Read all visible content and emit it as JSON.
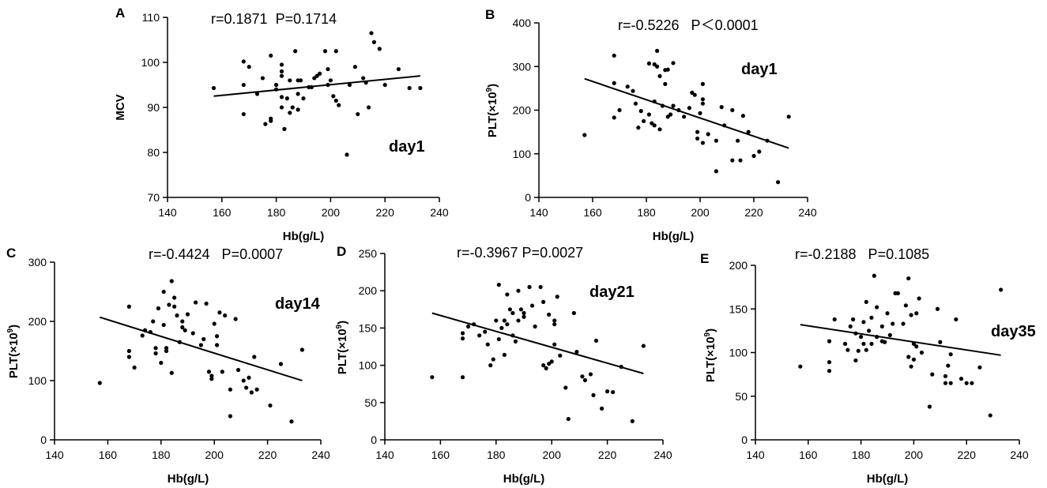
{
  "chart_data": [
    {
      "id": "A",
      "type": "scatter",
      "panel_label": "A",
      "xlabel": "Hb(g/L)",
      "ylabel": "MCV",
      "ylabel_sup": "",
      "ylabel_tail": "",
      "xlim": [
        140,
        240
      ],
      "ylim": [
        70,
        110
      ],
      "xticks": [
        140,
        160,
        180,
        200,
        220,
        240
      ],
      "yticks": [
        70,
        80,
        90,
        100,
        110
      ],
      "stats": "r=0.1871  P=0.1714",
      "annotation": "day1",
      "fit_line": [
        [
          157,
          92.5
        ],
        [
          233,
          97.0
        ]
      ],
      "points": [
        [
          157,
          94.3
        ],
        [
          168,
          100.2
        ],
        [
          168,
          95
        ],
        [
          168,
          88.5
        ],
        [
          170,
          99
        ],
        [
          173,
          93
        ],
        [
          175,
          96.5
        ],
        [
          176,
          86.3
        ],
        [
          178,
          101.5
        ],
        [
          178,
          87.5
        ],
        [
          178,
          87
        ],
        [
          180,
          94
        ],
        [
          180,
          95
        ],
        [
          182,
          99.5
        ],
        [
          182,
          90
        ],
        [
          182,
          92.3
        ],
        [
          182,
          97
        ],
        [
          182,
          98
        ],
        [
          183,
          85.2
        ],
        [
          184,
          92
        ],
        [
          185,
          96
        ],
        [
          185,
          88.8
        ],
        [
          186,
          90
        ],
        [
          187,
          102.5
        ],
        [
          188,
          89.5
        ],
        [
          188,
          96
        ],
        [
          188,
          93
        ],
        [
          189,
          96
        ],
        [
          190,
          92
        ],
        [
          192,
          94.5
        ],
        [
          193,
          94.5
        ],
        [
          194,
          96.5
        ],
        [
          195,
          97
        ],
        [
          196,
          97.5
        ],
        [
          198,
          102.5
        ],
        [
          199,
          98.5
        ],
        [
          199,
          95
        ],
        [
          200,
          96
        ],
        [
          201,
          92.5
        ],
        [
          202,
          91.5
        ],
        [
          202,
          102.5
        ],
        [
          203,
          90.5
        ],
        [
          206,
          79.5
        ],
        [
          207,
          95
        ],
        [
          209,
          99
        ],
        [
          210,
          88.5
        ],
        [
          212,
          96.5
        ],
        [
          213,
          95.5
        ],
        [
          214,
          90
        ],
        [
          215,
          106.5
        ],
        [
          216,
          104.5
        ],
        [
          218,
          103
        ],
        [
          220,
          95
        ],
        [
          225,
          98.5
        ],
        [
          229,
          94.3
        ],
        [
          233,
          94.3
        ]
      ]
    },
    {
      "id": "B",
      "type": "scatter",
      "panel_label": "B",
      "xlabel": "Hb(g/L)",
      "ylabel": "PLT(×10",
      "ylabel_sup": "9",
      "ylabel_tail": ")",
      "xlim": [
        140,
        240
      ],
      "ylim": [
        0,
        400
      ],
      "xticks": [
        140,
        160,
        180,
        200,
        220,
        240
      ],
      "yticks": [
        0,
        100,
        200,
        300,
        400
      ],
      "stats": "r=-0.5226   P＜0.0001",
      "annotation": "day1",
      "fit_line": [
        [
          157,
          272
        ],
        [
          233,
          113
        ]
      ],
      "points": [
        [
          157,
          143
        ],
        [
          168,
          325
        ],
        [
          168,
          262
        ],
        [
          168,
          183
        ],
        [
          170,
          200
        ],
        [
          173,
          254
        ],
        [
          175,
          244
        ],
        [
          176,
          215
        ],
        [
          177,
          160
        ],
        [
          178,
          198
        ],
        [
          179,
          175
        ],
        [
          181,
          307
        ],
        [
          181,
          190
        ],
        [
          182,
          170
        ],
        [
          183,
          305
        ],
        [
          183,
          220
        ],
        [
          183,
          165
        ],
        [
          184,
          336
        ],
        [
          184,
          300
        ],
        [
          185,
          278
        ],
        [
          185,
          156
        ],
        [
          186,
          210
        ],
        [
          187,
          260
        ],
        [
          187,
          292
        ],
        [
          188,
          293
        ],
        [
          188,
          185
        ],
        [
          189,
          190
        ],
        [
          190,
          308
        ],
        [
          190,
          210
        ],
        [
          192,
          200
        ],
        [
          194,
          185
        ],
        [
          196,
          205
        ],
        [
          197,
          240
        ],
        [
          198,
          235
        ],
        [
          199,
          150
        ],
        [
          199,
          135
        ],
        [
          200,
          193
        ],
        [
          201,
          260
        ],
        [
          201,
          225
        ],
        [
          201,
          215
        ],
        [
          201,
          125
        ],
        [
          203,
          145
        ],
        [
          206,
          130
        ],
        [
          206,
          60
        ],
        [
          208,
          207
        ],
        [
          209,
          165
        ],
        [
          212,
          200
        ],
        [
          212,
          85
        ],
        [
          214,
          130
        ],
        [
          215,
          85
        ],
        [
          216,
          187
        ],
        [
          218,
          150
        ],
        [
          220,
          95
        ],
        [
          222,
          105
        ],
        [
          225,
          130
        ],
        [
          229,
          35
        ],
        [
          233,
          185
        ]
      ]
    },
    {
      "id": "C",
      "type": "scatter",
      "panel_label": "C",
      "xlabel": "Hb(g/L)",
      "ylabel": "PLT(×10",
      "ylabel_sup": "9",
      "ylabel_tail": ")",
      "xlim": [
        140,
        240
      ],
      "ylim": [
        0,
        300
      ],
      "xticks": [
        140,
        160,
        180,
        200,
        220,
        240
      ],
      "yticks": [
        0,
        100,
        200,
        300
      ],
      "stats": "r=-0.4424   P=0.0007",
      "annotation": "day14",
      "fit_line": [
        [
          157,
          207
        ],
        [
          233,
          100
        ]
      ],
      "points": [
        [
          157,
          96
        ],
        [
          168,
          225
        ],
        [
          168,
          150
        ],
        [
          168,
          140
        ],
        [
          170,
          122
        ],
        [
          173,
          176
        ],
        [
          174,
          185
        ],
        [
          176,
          182
        ],
        [
          177,
          200
        ],
        [
          178,
          155
        ],
        [
          178,
          146
        ],
        [
          179,
          222
        ],
        [
          180,
          130
        ],
        [
          181,
          250
        ],
        [
          181,
          194
        ],
        [
          182,
          155
        ],
        [
          182,
          150
        ],
        [
          183,
          228
        ],
        [
          184,
          268
        ],
        [
          184,
          113
        ],
        [
          185,
          240
        ],
        [
          185,
          225
        ],
        [
          186,
          210
        ],
        [
          187,
          165
        ],
        [
          188,
          190
        ],
        [
          188,
          200
        ],
        [
          189,
          185
        ],
        [
          190,
          212
        ],
        [
          192,
          180
        ],
        [
          193,
          232
        ],
        [
          195,
          160
        ],
        [
          196,
          170
        ],
        [
          197,
          230
        ],
        [
          198,
          115
        ],
        [
          199,
          108
        ],
        [
          199,
          103
        ],
        [
          200,
          196
        ],
        [
          201,
          175
        ],
        [
          201,
          160
        ],
        [
          202,
          215
        ],
        [
          203,
          115
        ],
        [
          204,
          210
        ],
        [
          206,
          85
        ],
        [
          206,
          40
        ],
        [
          208,
          204
        ],
        [
          209,
          118
        ],
        [
          211,
          100
        ],
        [
          212,
          88
        ],
        [
          213,
          105
        ],
        [
          214,
          80
        ],
        [
          215,
          140
        ],
        [
          216,
          85
        ],
        [
          221,
          58
        ],
        [
          225,
          128
        ],
        [
          229,
          31
        ],
        [
          233,
          152
        ]
      ]
    },
    {
      "id": "D",
      "type": "scatter",
      "panel_label": "D",
      "xlabel": "Hb(g/L)",
      "ylabel": "PLT(×10",
      "ylabel_sup": "9",
      "ylabel_tail": ")",
      "xlim": [
        140,
        240
      ],
      "ylim": [
        0,
        250
      ],
      "xticks": [
        140,
        160,
        180,
        200,
        220,
        240
      ],
      "yticks": [
        0,
        50,
        100,
        150,
        200,
        250
      ],
      "stats": "r=-0.3967 P=0.0027",
      "annotation": "day21",
      "fit_line": [
        [
          157,
          170
        ],
        [
          233,
          89
        ]
      ],
      "points": [
        [
          157,
          84
        ],
        [
          168,
          143
        ],
        [
          168,
          136
        ],
        [
          168,
          84
        ],
        [
          170,
          152
        ],
        [
          172,
          155
        ],
        [
          174,
          140
        ],
        [
          176,
          145
        ],
        [
          177,
          128
        ],
        [
          178,
          100
        ],
        [
          179,
          108
        ],
        [
          180,
          160
        ],
        [
          181,
          135
        ],
        [
          181,
          208
        ],
        [
          182,
          150
        ],
        [
          183,
          114
        ],
        [
          183,
          160
        ],
        [
          184,
          195
        ],
        [
          184,
          155
        ],
        [
          185,
          175
        ],
        [
          186,
          170
        ],
        [
          186,
          140
        ],
        [
          187,
          132
        ],
        [
          188,
          160
        ],
        [
          188,
          200
        ],
        [
          189,
          175
        ],
        [
          190,
          170
        ],
        [
          190,
          165
        ],
        [
          192,
          205
        ],
        [
          193,
          180
        ],
        [
          194,
          152
        ],
        [
          196,
          205
        ],
        [
          197,
          185
        ],
        [
          197,
          100
        ],
        [
          198,
          96
        ],
        [
          199,
          102
        ],
        [
          199,
          168
        ],
        [
          200,
          105
        ],
        [
          201,
          128
        ],
        [
          201,
          160
        ],
        [
          201,
          155
        ],
        [
          202,
          192
        ],
        [
          203,
          113
        ],
        [
          205,
          70
        ],
        [
          206,
          28
        ],
        [
          208,
          170
        ],
        [
          209,
          118
        ],
        [
          211,
          85
        ],
        [
          212,
          80
        ],
        [
          214,
          88
        ],
        [
          215,
          60
        ],
        [
          216,
          133
        ],
        [
          218,
          42
        ],
        [
          220,
          65
        ],
        [
          222,
          64
        ],
        [
          225,
          98
        ],
        [
          229,
          25
        ],
        [
          233,
          126
        ]
      ]
    },
    {
      "id": "E",
      "type": "scatter",
      "panel_label": "E",
      "xlabel": "Hb(g/L)",
      "ylabel": "PLT(×10",
      "ylabel_sup": "9",
      "ylabel_tail": ")",
      "xlim": [
        140,
        240
      ],
      "ylim": [
        0,
        200
      ],
      "xticks": [
        140,
        160,
        180,
        200,
        220,
        240
      ],
      "yticks": [
        0,
        50,
        100,
        150,
        200
      ],
      "stats": "r=-0.2188   P=0.1085",
      "annotation": "day35",
      "fit_line": [
        [
          157,
          132
        ],
        [
          233,
          97
        ]
      ],
      "points": [
        [
          157,
          84
        ],
        [
          168,
          113
        ],
        [
          168,
          89
        ],
        [
          168,
          79
        ],
        [
          170,
          138
        ],
        [
          174,
          110
        ],
        [
          175,
          103
        ],
        [
          176,
          130
        ],
        [
          177,
          138
        ],
        [
          178,
          91
        ],
        [
          178,
          122
        ],
        [
          179,
          102
        ],
        [
          180,
          118
        ],
        [
          181,
          110
        ],
        [
          181,
          135
        ],
        [
          182,
          158
        ],
        [
          182,
          103
        ],
        [
          183,
          125
        ],
        [
          184,
          140
        ],
        [
          184,
          110
        ],
        [
          185,
          188
        ],
        [
          186,
          152
        ],
        [
          186,
          118
        ],
        [
          188,
          130
        ],
        [
          188,
          113
        ],
        [
          189,
          112
        ],
        [
          190,
          145
        ],
        [
          191,
          120
        ],
        [
          192,
          133
        ],
        [
          193,
          168
        ],
        [
          194,
          168
        ],
        [
          196,
          133
        ],
        [
          197,
          154
        ],
        [
          198,
          185
        ],
        [
          198,
          95
        ],
        [
          199,
          84
        ],
        [
          199,
          143
        ],
        [
          200,
          92
        ],
        [
          200,
          110
        ],
        [
          201,
          145
        ],
        [
          201,
          107
        ],
        [
          202,
          162
        ],
        [
          203,
          100
        ],
        [
          206,
          38
        ],
        [
          207,
          75
        ],
        [
          209,
          150
        ],
        [
          210,
          112
        ],
        [
          212,
          73
        ],
        [
          212,
          65
        ],
        [
          213,
          85
        ],
        [
          214,
          98
        ],
        [
          214,
          65
        ],
        [
          216,
          138
        ],
        [
          218,
          70
        ],
        [
          220,
          65
        ],
        [
          222,
          65
        ],
        [
          225,
          83
        ],
        [
          229,
          28
        ],
        [
          233,
          172
        ]
      ]
    }
  ]
}
